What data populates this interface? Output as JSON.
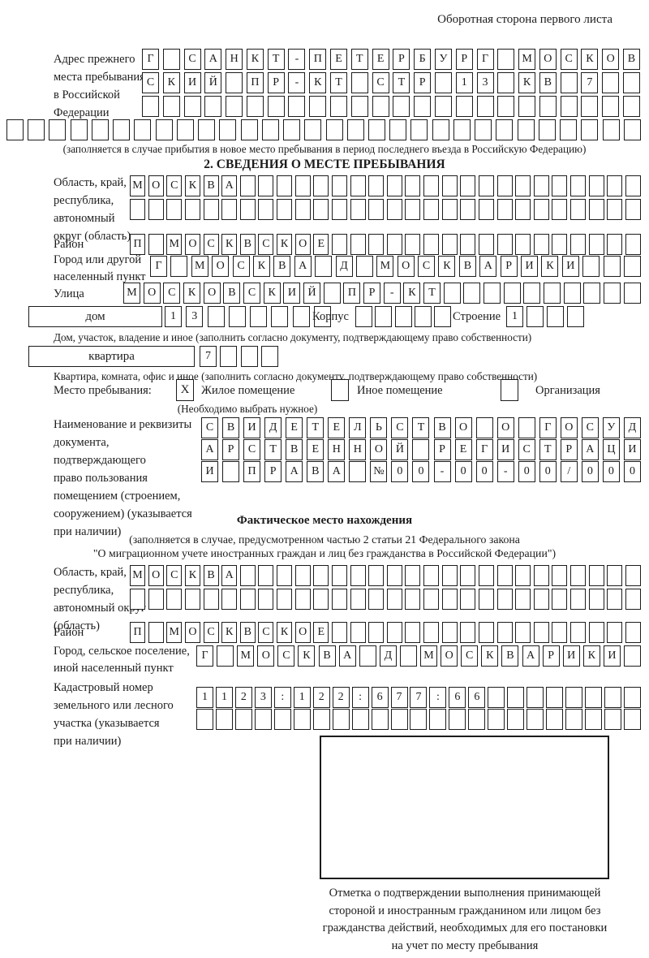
{
  "page": {
    "title": "Оборотная сторона первого листа"
  },
  "prev_address": {
    "label": "Адрес прежнего\nместа пребывания\nв Российской\nФедерации",
    "row1": {
      "t": "Г САНКТ-ПЕТЕРБУРГ МОСКОВ",
      "n": 24
    },
    "row2": {
      "t": "СКИЙ ПР-КТ СТР 13 КВ 7",
      "n": 24
    },
    "row3": {
      "t": "",
      "n": 24
    },
    "row4": {
      "t": "",
      "n": 30
    },
    "note": "(заполняется в случае прибытия в новое место пребывания в период последнего въезда в Российскую Федерацию)"
  },
  "section2": {
    "title": "2. СВЕДЕНИЯ О МЕСТЕ ПРЕБЫВАНИЯ",
    "region": {
      "label": "Область, край,\nреспублика,\nавтономный\nокруг (область)",
      "row1": {
        "t": "МОСКВА",
        "n": 28
      },
      "row2": {
        "t": "",
        "n": 28
      }
    },
    "district": {
      "label": "Район",
      "row": {
        "t": "П МОСКВСКОЕ",
        "n": 28
      }
    },
    "city": {
      "label": "Город или другой\nнаселенный пункт",
      "row": {
        "t": "Г МОСКВА Д МОСКВАРИКИ",
        "n": 24
      }
    },
    "street": {
      "label": "Улица",
      "row": {
        "t": "МОСКОВСКИЙ ПР-КТ",
        "n": 26
      }
    },
    "house": {
      "box_label": "дом",
      "cells": {
        "t": "13",
        "n": 8
      },
      "korpus_label": "Корпус",
      "korpus_cells": {
        "t": "",
        "n": 5
      },
      "stroenie_label": "Строение",
      "stroenie_cells": {
        "t": "1",
        "n": 4
      },
      "note": "Дом, участок, владение и иное (заполнить согласно документу, подтверждающему право собственности)"
    },
    "apartment": {
      "box_label": "квартира",
      "cells": {
        "t": "7",
        "n": 4
      },
      "note": "Квартира, комната, офис и иное (заполнить согласно документу, подтверждающему право собственности)"
    },
    "stay_type": {
      "label": "Место пребывания:",
      "options": [
        {
          "mark": "X",
          "label": "Жилое помещение"
        },
        {
          "mark": "",
          "label": "Иное помещение"
        },
        {
          "mark": "",
          "label": "Организация"
        }
      ],
      "note": "(Необходимо выбрать нужное)"
    },
    "document": {
      "label": "Наименование и реквизиты\nдокумента, подтверждающего\nправо пользования\nпомещением (строением,\nсооружением) (указывается\nпри наличии)",
      "row1": {
        "t": "СВИДЕТЕЛЬСТВО О ГОСУД",
        "n": 21
      },
      "row2": {
        "t": "АРСТВЕННОЙ РЕГИСТРАЦИ",
        "n": 21
      },
      "row3": {
        "t": "И ПРАВА №00-00-00/000",
        "n": 21
      }
    }
  },
  "actual_location": {
    "title": "Фактическое место нахождения",
    "note1": "(заполняется в случае, предусмотренном частью 2 статьи 21 Федерального закона",
    "note2": "\"О миграционном учете иностранных граждан и лиц без гражданства в Российской Федерации\")",
    "region": {
      "label": "Область, край,\nреспублика,\nавтономный округ\n(область)",
      "row1": {
        "t": "МОСКВА",
        "n": 28
      },
      "row2": {
        "t": "",
        "n": 28
      }
    },
    "district": {
      "label": "Район",
      "row": {
        "t": "П МОСКВСКОЕ",
        "n": 28
      }
    },
    "city": {
      "label": "Город, сельское поселение,\nиной населенный пункт",
      "row": {
        "t": "Г МОСКВА Д МОСКВАРИКИ",
        "n": 22
      }
    },
    "cadastre": {
      "label": "Кадастровый номер\nземельного или лесного\nучастка (указывается\nпри наличии)",
      "row1": {
        "t": "1123:122:677:66",
        "n": 23
      },
      "row2": {
        "t": "",
        "n": 23
      }
    },
    "stamp_note": "Отметка о подтверждении выполнения принимающей\nстороной и иностранным гражданином или лицом без\nгражданства действий, необходимых для его постановки\nна учет по месту пребывания"
  }
}
